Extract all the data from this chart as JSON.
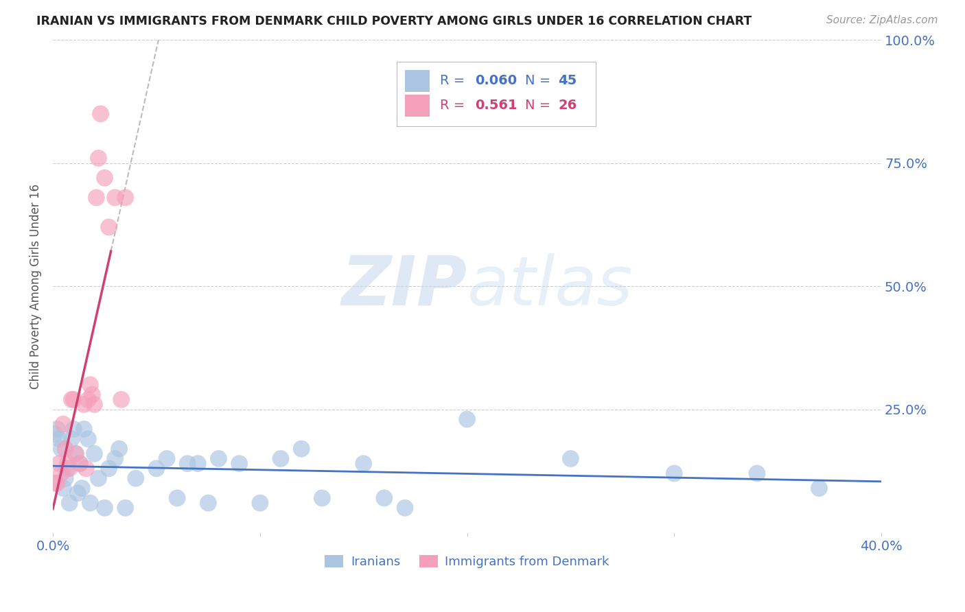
{
  "title": "IRANIAN VS IMMIGRANTS FROM DENMARK CHILD POVERTY AMONG GIRLS UNDER 16 CORRELATION CHART",
  "source": "Source: ZipAtlas.com",
  "ylabel": "Child Poverty Among Girls Under 16",
  "xlim": [
    0.0,
    0.4
  ],
  "ylim": [
    0.0,
    1.0
  ],
  "legend_iranians": "Iranians",
  "legend_denmark": "Immigrants from Denmark",
  "R_iranians": "0.060",
  "N_iranians": "45",
  "R_denmark": "0.561",
  "N_denmark": "26",
  "color_iranians": "#aac4e2",
  "color_denmark": "#f5a0bb",
  "color_iranians_line": "#4472c4",
  "color_denmark_line": "#d04070",
  "color_r_iranians": "#4472c4",
  "color_r_denmark": "#d04070",
  "color_axis_labels": "#4472c4",
  "iranians_x": [
    0.001,
    0.002,
    0.003,
    0.004,
    0.005,
    0.006,
    0.007,
    0.008,
    0.009,
    0.01,
    0.011,
    0.012,
    0.013,
    0.014,
    0.015,
    0.017,
    0.018,
    0.02,
    0.022,
    0.025,
    0.027,
    0.03,
    0.032,
    0.035,
    0.04,
    0.05,
    0.055,
    0.06,
    0.065,
    0.07,
    0.075,
    0.08,
    0.09,
    0.1,
    0.11,
    0.12,
    0.13,
    0.15,
    0.16,
    0.17,
    0.2,
    0.25,
    0.3,
    0.34,
    0.37
  ],
  "iranians_y": [
    0.2,
    0.21,
    0.19,
    0.17,
    0.09,
    0.11,
    0.13,
    0.06,
    0.19,
    0.21,
    0.16,
    0.08,
    0.14,
    0.09,
    0.21,
    0.19,
    0.06,
    0.16,
    0.11,
    0.05,
    0.13,
    0.15,
    0.17,
    0.05,
    0.11,
    0.13,
    0.15,
    0.07,
    0.14,
    0.14,
    0.06,
    0.15,
    0.14,
    0.06,
    0.15,
    0.17,
    0.07,
    0.14,
    0.07,
    0.05,
    0.23,
    0.15,
    0.12,
    0.12,
    0.09
  ],
  "denmark_x": [
    0.001,
    0.002,
    0.003,
    0.004,
    0.005,
    0.006,
    0.007,
    0.008,
    0.009,
    0.01,
    0.011,
    0.013,
    0.015,
    0.016,
    0.017,
    0.018,
    0.019,
    0.02,
    0.021,
    0.022,
    0.023,
    0.025,
    0.027,
    0.03,
    0.033,
    0.035
  ],
  "denmark_y": [
    0.1,
    0.1,
    0.14,
    0.12,
    0.22,
    0.17,
    0.14,
    0.13,
    0.27,
    0.27,
    0.16,
    0.14,
    0.26,
    0.13,
    0.27,
    0.3,
    0.28,
    0.26,
    0.68,
    0.76,
    0.85,
    0.72,
    0.62,
    0.68,
    0.27,
    0.68
  ],
  "watermark_zip": "ZIP",
  "watermark_atlas": "atlas",
  "background_color": "#ffffff",
  "grid_color": "#cccccc"
}
